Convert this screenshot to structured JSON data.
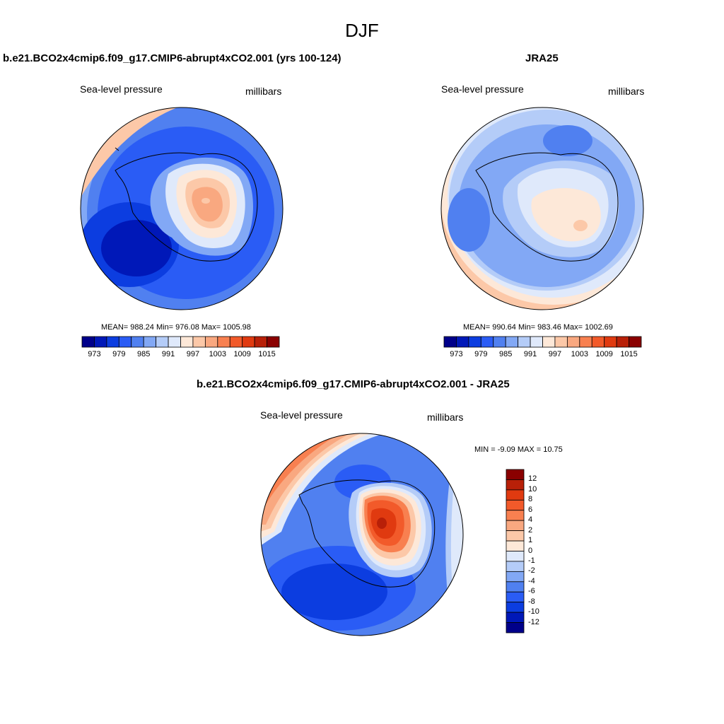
{
  "figure": {
    "title": "DJF"
  },
  "panels": {
    "model": {
      "title": "b.e21.BCO2x4cmip6.f09_g17.CMIP6-abrupt4xCO2.001 (yrs 100-124)",
      "left_label": "Sea-level pressure",
      "right_label": "millibars",
      "stats": "MEAN= 988.24  Min= 976.08  Max= 1005.98"
    },
    "obs": {
      "title": "JRA25",
      "left_label": "Sea-level pressure",
      "right_label": "millibars",
      "stats": "MEAN= 990.64  Min= 983.46  Max= 1002.69"
    },
    "diff": {
      "title": "b.e21.BCO2x4cmip6.f09_g17.CMIP6-abrupt4xCO2.001 - JRA25",
      "left_label": "Sea-level pressure",
      "right_label": "millibars",
      "stats": "MIN =  -9.09 MAX =  10.75"
    }
  },
  "colorbars": {
    "slp": {
      "ticks": [
        "973",
        "979",
        "985",
        "991",
        "997",
        "1003",
        "1009",
        "1015"
      ],
      "colors": [
        "#00008a",
        "#0018b8",
        "#0c3de0",
        "#2a5cf5",
        "#5080f0",
        "#82a8f5",
        "#b4ccf8",
        "#dfe9fb",
        "#fde8d8",
        "#fcc8a8",
        "#f9a880",
        "#f88050",
        "#f25a2a",
        "#e03a10",
        "#b82008",
        "#8a0000"
      ]
    },
    "diff": {
      "ticks": [
        "12",
        "10",
        "8",
        "6",
        "4",
        "2",
        "1",
        "0",
        "-1",
        "-2",
        "-4",
        "-6",
        "-8",
        "-10",
        "-12"
      ],
      "colors": [
        "#8a0000",
        "#b82008",
        "#e03a10",
        "#f25a2a",
        "#f88050",
        "#f9a880",
        "#fcc8a8",
        "#fde8d8",
        "#dfe9fb",
        "#b4ccf8",
        "#82a8f5",
        "#5080f0",
        "#2a5cf5",
        "#0c3de0",
        "#0018b8",
        "#00008a"
      ]
    }
  }
}
